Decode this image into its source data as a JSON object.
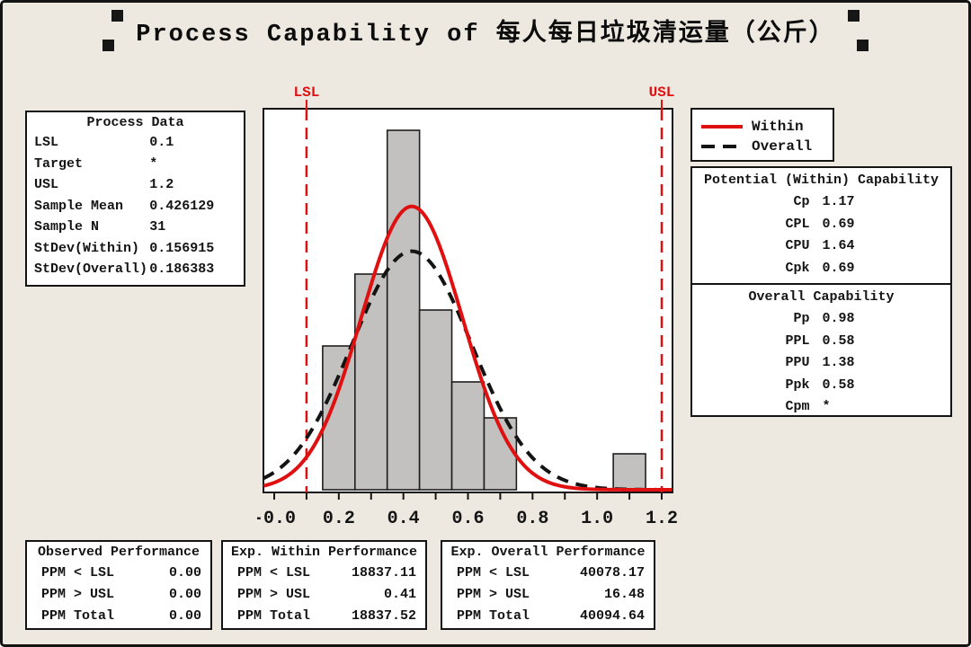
{
  "title": {
    "text": "Process Capability of 每人每日垃圾清运量（公斤）"
  },
  "process_data": {
    "title": "Process Data",
    "rows": [
      {
        "label": "LSL",
        "value": "0.1"
      },
      {
        "label": "Target",
        "value": "*"
      },
      {
        "label": "USL",
        "value": "1.2"
      },
      {
        "label": "Sample Mean",
        "value": "0.426129"
      },
      {
        "label": "Sample N",
        "value": "31"
      },
      {
        "label": "StDev(Within)",
        "value": "0.156915"
      },
      {
        "label": "StDev(Overall)",
        "value": "0.186383"
      }
    ]
  },
  "legend": {
    "items": [
      {
        "label": "Within",
        "style": "solid",
        "color": "#E01010"
      },
      {
        "label": "Overall",
        "style": "dashed",
        "color": "#141414"
      }
    ]
  },
  "capability": {
    "within": {
      "title": "Potential (Within) Capability",
      "rows": [
        {
          "label": "Cp",
          "value": "1.17"
        },
        {
          "label": "CPL",
          "value": "0.69"
        },
        {
          "label": "CPU",
          "value": "1.64"
        },
        {
          "label": "Cpk",
          "value": "0.69"
        }
      ]
    },
    "overall": {
      "title": "Overall Capability",
      "rows": [
        {
          "label": "Pp",
          "value": "0.98"
        },
        {
          "label": "PPL",
          "value": "0.58"
        },
        {
          "label": "PPU",
          "value": "1.38"
        },
        {
          "label": "Ppk",
          "value": "0.58"
        },
        {
          "label": "Cpm",
          "value": "*"
        }
      ]
    }
  },
  "performance": [
    {
      "title": "Observed Performance",
      "rows": [
        {
          "label": "PPM < LSL",
          "value": "0.00"
        },
        {
          "label": "PPM > USL",
          "value": "0.00"
        },
        {
          "label": "PPM Total",
          "value": "0.00"
        }
      ]
    },
    {
      "title": "Exp. Within Performance",
      "rows": [
        {
          "label": "PPM < LSL",
          "value": "18837.11"
        },
        {
          "label": "PPM > USL",
          "value": "0.41"
        },
        {
          "label": "PPM Total",
          "value": "18837.52"
        }
      ]
    },
    {
      "title": "Exp. Overall Performance",
      "rows": [
        {
          "label": "PPM < LSL",
          "value": "40078.17"
        },
        {
          "label": "PPM > USL",
          "value": "16.48"
        },
        {
          "label": "PPM Total",
          "value": "40094.64"
        }
      ]
    }
  ],
  "chart_data": {
    "type": "histogram",
    "title": "Process Capability of 每人每日垃圾清运量（公斤）",
    "sample_n": 31,
    "bins": {
      "start": 0.15,
      "width": 0.1,
      "counts": [
        4,
        6,
        10,
        5,
        3,
        2,
        0,
        0,
        0,
        1
      ]
    },
    "x_tick_labels": [
      {
        "v": 0.0,
        "label": "-0.0"
      },
      {
        "v": 0.2,
        "label": "0.2"
      },
      {
        "v": 0.4,
        "label": "0.4"
      },
      {
        "v": 0.6,
        "label": "0.6"
      },
      {
        "v": 0.8,
        "label": "0.8"
      },
      {
        "v": 1.0,
        "label": "1.0"
      },
      {
        "v": 1.2,
        "label": "1.2"
      }
    ],
    "x_minor_step": 0.1,
    "xlim": [
      -0.033,
      1.233
    ],
    "spec_limits": {
      "lsl": {
        "label": "LSL",
        "value": 0.1
      },
      "usl": {
        "label": "USL",
        "value": 1.2
      }
    },
    "curves": [
      {
        "name": "Overall",
        "mean": 0.426129,
        "stdev": 0.186383,
        "color": "#141414",
        "dash": "dashed"
      },
      {
        "name": "Within",
        "mean": 0.426129,
        "stdev": 0.156915,
        "color": "#E01010",
        "dash": "solid"
      }
    ],
    "colors": {
      "bar_fill": "#C3C1BF",
      "bar_stroke": "#1f1f1f",
      "spec_line": "#E01010",
      "plot_bg": "#ffffff"
    }
  }
}
